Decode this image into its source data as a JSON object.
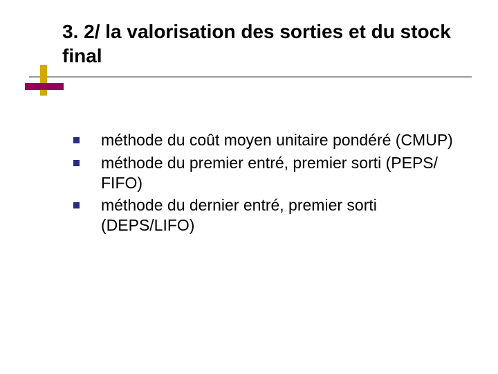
{
  "slide": {
    "title": "3. 2/ la valorisation des sorties et du stock final",
    "title_fontsize": 28,
    "title_fontweight": 700,
    "title_color": "#000000",
    "body_fontsize": 23,
    "body_color": "#000000",
    "bullet_color": "#2b2b85",
    "accent_vert_color": "#d2a800",
    "accent_horiz_color": "#930055",
    "underline_color": "#9a9a9a",
    "background_color": "#ffffff",
    "items": [
      {
        "text": "méthode du coût moyen unitaire pondéré (CMUP)"
      },
      {
        "text": "méthode du premier entré, premier sorti (PEPS/ FIFO)"
      },
      {
        "text": "méthode du dernier entré, premier sorti (DEPS/LIFO)"
      }
    ]
  }
}
